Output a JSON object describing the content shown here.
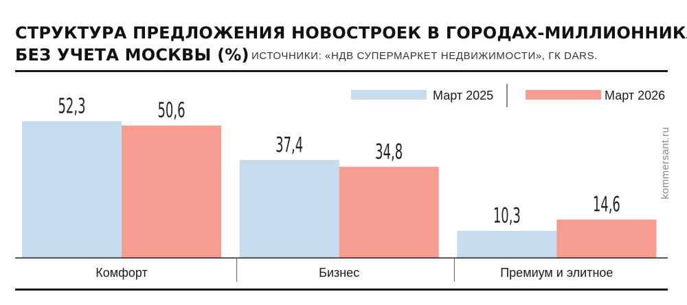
{
  "header": {
    "title_line1": "СТРУКТУРА ПРЕДЛОЖЕНИЯ НОВОСТРОЕК В ГОРОДАХ-МИЛЛИОННИКАХ",
    "title_line2": "БЕЗ УЧЕТА МОСКВЫ (%)",
    "source": "ИСТОЧНИКИ: «НДВ СУПЕРМАРКЕТ НЕДВИЖИМОСТИ», ГК DARS."
  },
  "watermark": "kommersant.ru",
  "chart_data": {
    "type": "bar",
    "title": "СТРУКТУРА ПРЕДЛОЖЕНИЯ НОВОСТРОЕК В ГОРОДАХ-МИЛЛИОННИКАХ БЕЗ УЧЕТА МОСКВЫ (%)",
    "categories": [
      "Комфорт",
      "Бизнес",
      "Премиум и элитное"
    ],
    "series": [
      {
        "name": "Март 2025",
        "values": [
          52.3,
          37.4,
          10.3
        ],
        "labels": [
          "52,3",
          "37,4",
          "10,3"
        ],
        "color": "#c5dcee"
      },
      {
        "name": "Март 2026",
        "values": [
          50.6,
          34.8,
          14.6
        ],
        "labels": [
          "50,6",
          "34,8",
          "14,6"
        ],
        "color": "#f79c90"
      }
    ],
    "ylim": [
      0,
      60
    ],
    "grid": false,
    "legend": "top-right",
    "colors": {
      "axis": "#1a1a1a",
      "separator": "#555555"
    }
  }
}
